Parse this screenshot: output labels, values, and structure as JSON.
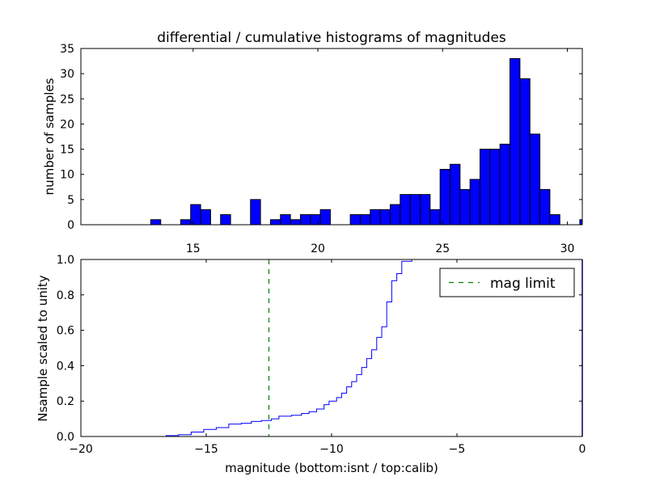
{
  "chart_data": [
    {
      "type": "bar",
      "title": "differential / cumulative histograms of magnitudes",
      "xlabel": "",
      "ylabel": "number of samples",
      "xlim": [
        10.5,
        30.6
      ],
      "ylim": [
        0,
        35
      ],
      "x_ticks": [
        15,
        20,
        25,
        30
      ],
      "y_ticks": [
        0,
        5,
        10,
        15,
        20,
        25,
        30,
        35
      ],
      "x_tick_labels": [
        "15",
        "20",
        "25",
        "30"
      ],
      "y_tick_labels": [
        "0",
        "5",
        "10",
        "15",
        "20",
        "25",
        "30",
        "35"
      ],
      "bin_width": 0.4,
      "bin_left_edges": [
        13.3,
        14.5,
        14.9,
        15.3,
        16.1,
        17.3,
        18.1,
        18.5,
        18.9,
        19.3,
        19.7,
        20.1,
        20.5,
        21.3,
        21.7,
        22.1,
        22.5,
        22.9,
        23.3,
        23.7,
        24.1,
        24.5,
        24.9,
        25.3,
        25.7,
        26.1,
        26.5,
        26.9,
        27.3,
        27.7,
        28.1,
        28.5,
        28.9,
        29.3,
        29.7,
        30.5
      ],
      "values": [
        1,
        1,
        4,
        3,
        2,
        5,
        1,
        2,
        1,
        2,
        2,
        3,
        0,
        2,
        2,
        3,
        3,
        4,
        6,
        6,
        6,
        3,
        11,
        12,
        7,
        9,
        15,
        15,
        16,
        33,
        29,
        18,
        7,
        2,
        0,
        1
      ],
      "bar_color": "#0000ff",
      "edge_color": "#000000",
      "grid": false
    },
    {
      "type": "line",
      "style": "step",
      "title": "",
      "xlabel": "magnitude (bottom:isnt / top:calib)",
      "ylabel": "Nsample scaled to unity",
      "xlim": [
        -20,
        0
      ],
      "ylim": [
        0,
        1
      ],
      "x_ticks": [
        -20,
        -15,
        -10,
        -5,
        0
      ],
      "y_ticks": [
        0,
        0.2,
        0.4,
        0.6,
        0.8,
        1.0
      ],
      "x_tick_labels": [
        "−20",
        "−15",
        "−10",
        "−5",
        "0"
      ],
      "y_tick_labels": [
        "0.0",
        "0.2",
        "0.4",
        "0.6",
        "0.8",
        "1.0"
      ],
      "series": [
        {
          "color": "#0000ff",
          "points": [
            [
              -20,
              0
            ],
            [
              -16.6,
              0
            ],
            [
              -16.6,
              0.005
            ],
            [
              -16.1,
              0.005
            ],
            [
              -16.1,
              0.01
            ],
            [
              -15.6,
              0.01
            ],
            [
              -15.6,
              0.025
            ],
            [
              -15.1,
              0.025
            ],
            [
              -15.1,
              0.04
            ],
            [
              -14.6,
              0.04
            ],
            [
              -14.6,
              0.05
            ],
            [
              -14.1,
              0.05
            ],
            [
              -14.1,
              0.07
            ],
            [
              -13.6,
              0.07
            ],
            [
              -13.6,
              0.075
            ],
            [
              -13.2,
              0.075
            ],
            [
              -13.2,
              0.085
            ],
            [
              -12.8,
              0.085
            ],
            [
              -12.8,
              0.09
            ],
            [
              -12.4,
              0.09
            ],
            [
              -12.4,
              0.1
            ],
            [
              -12.1,
              0.1
            ],
            [
              -12.1,
              0.115
            ],
            [
              -11.6,
              0.115
            ],
            [
              -11.6,
              0.12
            ],
            [
              -11.2,
              0.12
            ],
            [
              -11.2,
              0.13
            ],
            [
              -10.9,
              0.13
            ],
            [
              -10.9,
              0.14
            ],
            [
              -10.6,
              0.14
            ],
            [
              -10.6,
              0.155
            ],
            [
              -10.3,
              0.155
            ],
            [
              -10.3,
              0.18
            ],
            [
              -10.1,
              0.18
            ],
            [
              -10.1,
              0.2
            ],
            [
              -9.8,
              0.2
            ],
            [
              -9.8,
              0.22
            ],
            [
              -9.6,
              0.22
            ],
            [
              -9.6,
              0.245
            ],
            [
              -9.4,
              0.245
            ],
            [
              -9.4,
              0.28
            ],
            [
              -9.2,
              0.28
            ],
            [
              -9.2,
              0.31
            ],
            [
              -9.0,
              0.31
            ],
            [
              -9.0,
              0.35
            ],
            [
              -8.8,
              0.35
            ],
            [
              -8.8,
              0.39
            ],
            [
              -8.6,
              0.39
            ],
            [
              -8.6,
              0.44
            ],
            [
              -8.4,
              0.44
            ],
            [
              -8.4,
              0.49
            ],
            [
              -8.2,
              0.49
            ],
            [
              -8.2,
              0.56
            ],
            [
              -8.0,
              0.56
            ],
            [
              -8.0,
              0.62
            ],
            [
              -7.8,
              0.62
            ],
            [
              -7.8,
              0.76
            ],
            [
              -7.6,
              0.76
            ],
            [
              -7.6,
              0.88
            ],
            [
              -7.4,
              0.88
            ],
            [
              -7.4,
              0.92
            ],
            [
              -7.2,
              0.92
            ],
            [
              -7.2,
              0.99
            ],
            [
              -6.8,
              0.99
            ],
            [
              -6.8,
              1.0
            ],
            [
              0,
              1.0
            ]
          ]
        },
        {
          "name": "mag limit",
          "color": "#008000",
          "dashed": true,
          "vertical_x": -12.5
        }
      ],
      "legend": {
        "entries": [
          "mag limit"
        ],
        "placement": "top-right"
      },
      "grid": false
    }
  ]
}
